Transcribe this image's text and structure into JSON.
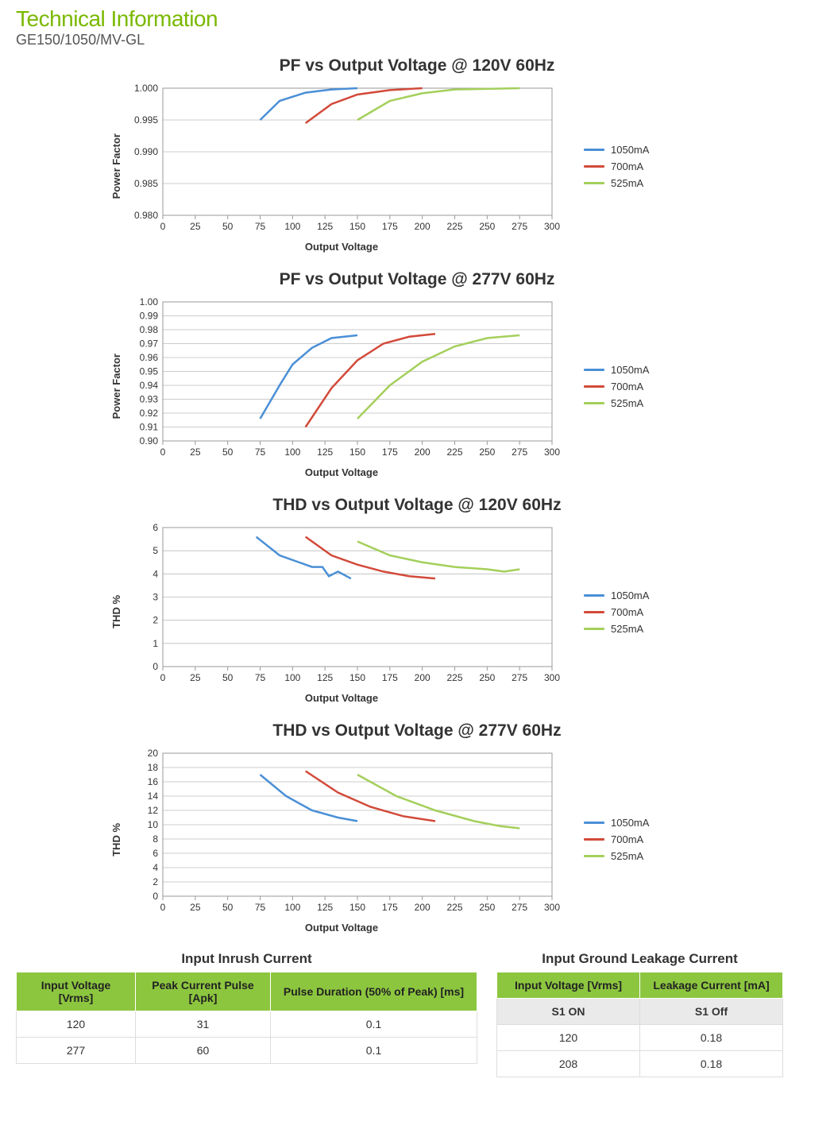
{
  "header": {
    "title": "Technical Information",
    "sub": "GE150/1050/MV-GL"
  },
  "legend": {
    "s1": "1050mA",
    "s2": "700mA",
    "s3": "525mA"
  },
  "colors": {
    "s1": "#4a8fd6",
    "s2": "#d24a3a",
    "s3": "#a4cf5b",
    "grid": "#999",
    "accent": "#7ab800",
    "th": "#8cc63f"
  },
  "charts": [
    {
      "id": "c1",
      "title": "PF vs Output Voltage @ 120V 60Hz",
      "ylab": "Power Factor",
      "xlab": "Output Voltage",
      "xlim": [
        0,
        300
      ],
      "xtick_step": 25,
      "ylim": [
        0.98,
        1.0
      ],
      "ytick_step": 0.005,
      "yfmt": 3,
      "ph": 160,
      "series": {
        "s1": [
          [
            75,
            0.995
          ],
          [
            90,
            0.998
          ],
          [
            110,
            0.9993
          ],
          [
            130,
            0.9998
          ],
          [
            150,
            1.0
          ]
        ],
        "s2": [
          [
            110,
            0.9945
          ],
          [
            130,
            0.9975
          ],
          [
            150,
            0.999
          ],
          [
            175,
            0.9997
          ],
          [
            200,
            1.0
          ]
        ],
        "s3": [
          [
            150,
            0.995
          ],
          [
            175,
            0.998
          ],
          [
            200,
            0.9992
          ],
          [
            225,
            0.9998
          ],
          [
            275,
            1.0
          ]
        ]
      }
    },
    {
      "id": "c2",
      "title": "PF vs Output Voltage @ 277V 60Hz",
      "ylab": "Power Factor",
      "xlab": "Output Voltage",
      "xlim": [
        0,
        300
      ],
      "xtick_step": 25,
      "ylim": [
        0.9,
        1.0
      ],
      "ytick_step": 0.01,
      "yfmt": 2,
      "ph": 175,
      "series": {
        "s1": [
          [
            75,
            0.916
          ],
          [
            90,
            0.94
          ],
          [
            100,
            0.955
          ],
          [
            115,
            0.967
          ],
          [
            130,
            0.974
          ],
          [
            150,
            0.976
          ]
        ],
        "s2": [
          [
            110,
            0.91
          ],
          [
            130,
            0.938
          ],
          [
            150,
            0.958
          ],
          [
            170,
            0.97
          ],
          [
            190,
            0.975
          ],
          [
            210,
            0.977
          ]
        ],
        "s3": [
          [
            150,
            0.916
          ],
          [
            175,
            0.94
          ],
          [
            200,
            0.957
          ],
          [
            225,
            0.968
          ],
          [
            250,
            0.974
          ],
          [
            275,
            0.976
          ]
        ]
      }
    },
    {
      "id": "c3",
      "title": "THD vs Output Voltage @ 120V 60Hz",
      "ylab": "THD %",
      "xlab": "Output Voltage",
      "xlim": [
        0,
        300
      ],
      "xtick_step": 25,
      "ylim": [
        0,
        6
      ],
      "ytick_step": 1,
      "yfmt": 0,
      "ph": 175,
      "series": {
        "s1": [
          [
            72,
            5.6
          ],
          [
            90,
            4.8
          ],
          [
            105,
            4.5
          ],
          [
            115,
            4.3
          ],
          [
            123,
            4.3
          ],
          [
            128,
            3.9
          ],
          [
            135,
            4.1
          ],
          [
            145,
            3.8
          ]
        ],
        "s2": [
          [
            110,
            5.6
          ],
          [
            130,
            4.8
          ],
          [
            150,
            4.4
          ],
          [
            170,
            4.1
          ],
          [
            190,
            3.9
          ],
          [
            210,
            3.8
          ]
        ],
        "s3": [
          [
            150,
            5.4
          ],
          [
            175,
            4.8
          ],
          [
            200,
            4.5
          ],
          [
            225,
            4.3
          ],
          [
            250,
            4.2
          ],
          [
            263,
            4.1
          ],
          [
            275,
            4.2
          ]
        ]
      }
    },
    {
      "id": "c4",
      "title": "THD vs Output Voltage @ 277V 60Hz",
      "ylab": "THD %",
      "xlab": "Output Voltage",
      "xlim": [
        0,
        300
      ],
      "xtick_step": 25,
      "ylim": [
        0,
        20
      ],
      "ytick_step": 2,
      "yfmt": 0,
      "ph": 180,
      "series": {
        "s1": [
          [
            75,
            17
          ],
          [
            95,
            14
          ],
          [
            115,
            12
          ],
          [
            135,
            11
          ],
          [
            150,
            10.5
          ]
        ],
        "s2": [
          [
            110,
            17.5
          ],
          [
            135,
            14.5
          ],
          [
            160,
            12.5
          ],
          [
            185,
            11.2
          ],
          [
            210,
            10.5
          ]
        ],
        "s3": [
          [
            150,
            17
          ],
          [
            180,
            14
          ],
          [
            210,
            12
          ],
          [
            240,
            10.5
          ],
          [
            260,
            9.8
          ],
          [
            275,
            9.5
          ]
        ]
      }
    }
  ],
  "table1": {
    "title": "Input Inrush Current",
    "cols": [
      "Input Voltage [Vrms]",
      "Peak Current Pulse [Apk]",
      "Pulse Duration (50% of Peak) [ms]"
    ],
    "rows": [
      [
        "120",
        "31",
        "0.1"
      ],
      [
        "277",
        "60",
        "0.1"
      ]
    ],
    "widths": [
      150,
      170,
      260
    ]
  },
  "table2": {
    "title": "Input Ground Leakage Current",
    "cols": [
      "Input Voltage [Vrms]",
      "Leakage Current [mA]"
    ],
    "sub": [
      "S1 ON",
      "S1 Off"
    ],
    "rows": [
      [
        "120",
        "0.18"
      ],
      [
        "208",
        "0.18"
      ]
    ],
    "widths": [
      180,
      180
    ]
  }
}
